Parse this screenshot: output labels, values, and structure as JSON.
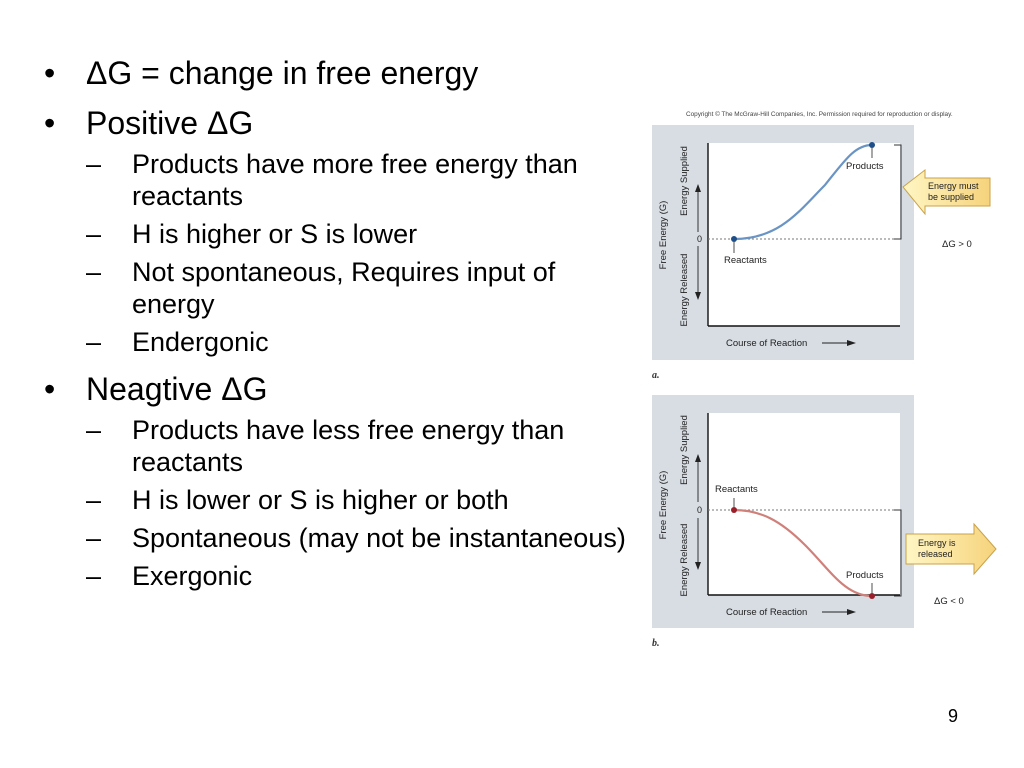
{
  "bullets": [
    {
      "text": "ΔG = change in free energy",
      "subs": []
    },
    {
      "text": "Positive ΔG",
      "subs": [
        "Products have more free energy than reactants",
        "H is higher or S is lower",
        "Not spontaneous, Requires input of energy",
        "Endergonic"
      ]
    },
    {
      "text": "Neagtive ΔG",
      "subs": [
        "Products have less free energy than reactants",
        "H is lower or S is higher or both",
        "Spontaneous (may not be instantaneous)",
        "Exergonic"
      ]
    }
  ],
  "figure": {
    "copyright": "Copyright © The McGraw-Hill Companies, Inc. Permission required for reproduction or display.",
    "y_axis_label": "Free Energy (G)",
    "upper_axis_label": "Energy Supplied",
    "lower_axis_label": "Energy Released",
    "zero_label": "0",
    "x_axis_label": "Course of Reaction",
    "panel_a": {
      "letter": "a.",
      "start_label": "Reactants",
      "end_label": "Products",
      "callout": "Energy must be supplied",
      "callout_lines": [
        "Energy must",
        "be supplied"
      ],
      "delta": "ΔG > 0",
      "curve_color": "#6a94c4",
      "point_color": "#1f4f88"
    },
    "panel_b": {
      "letter": "b.",
      "start_label": "Reactants",
      "end_label": "Products",
      "callout": "Energy is released",
      "callout_lines": [
        "Energy is",
        "released"
      ],
      "delta": "ΔG < 0",
      "curve_color": "#d0807a",
      "point_color": "#9a1f2a"
    }
  },
  "page_number": "9"
}
